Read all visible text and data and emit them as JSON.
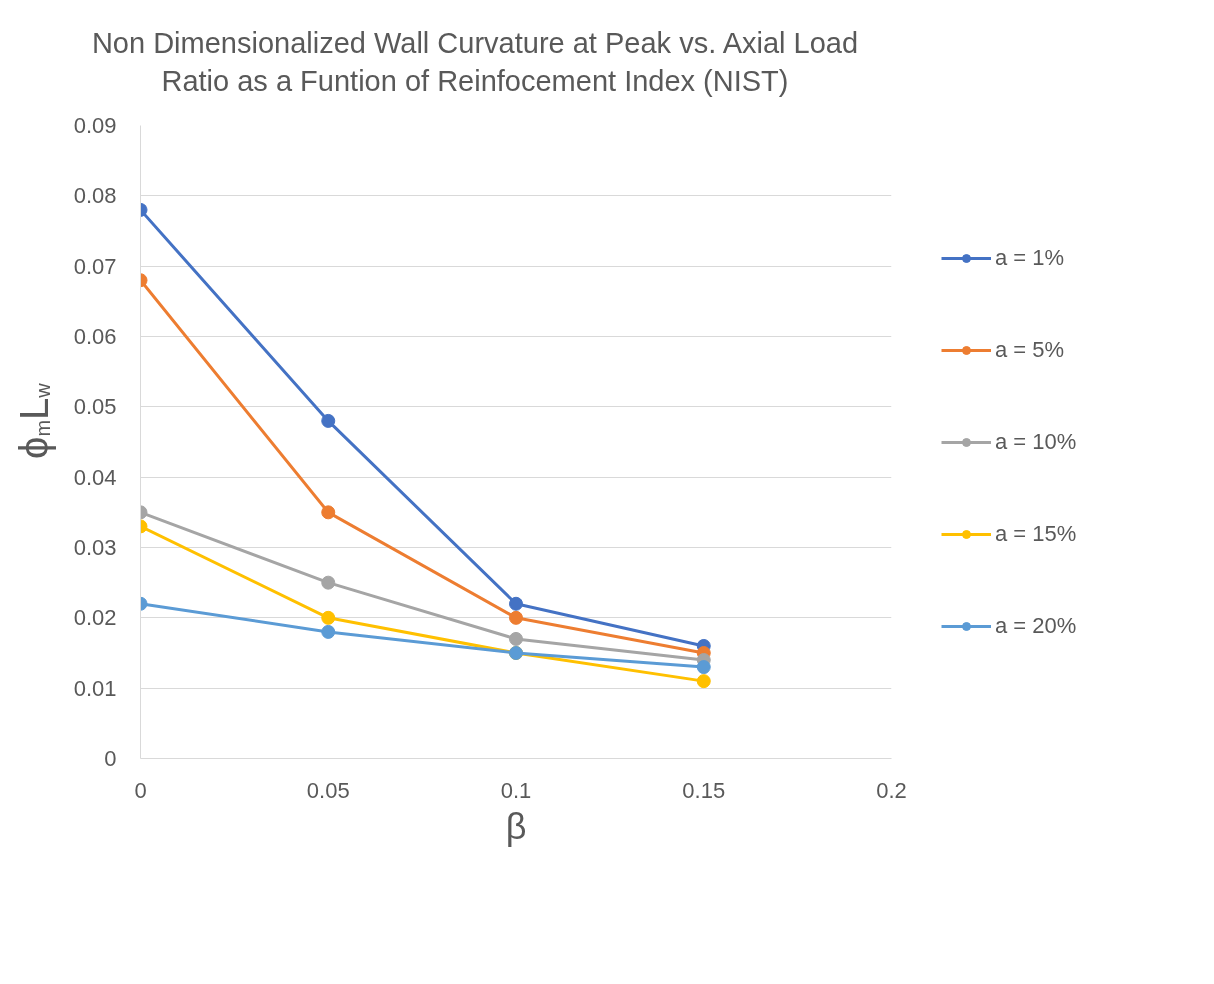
{
  "chart_data": {
    "type": "line",
    "title": "Non Dimensionalized Wall Curvature at Peak vs. Axial Load\nRatio as a Funtion of Reinfocement Index (NIST)",
    "xlabel": "β",
    "ylabel": "ϕ$_{m}$L$_{w}$",
    "x": [
      0,
      0.05,
      0.1,
      0.15
    ],
    "series": [
      {
        "name": "a = 1%",
        "color": "#4472c4",
        "values": [
          0.078,
          0.048,
          0.022,
          0.016
        ]
      },
      {
        "name": "a = 5%",
        "color": "#ed7d31",
        "values": [
          0.068,
          0.035,
          0.02,
          0.015
        ]
      },
      {
        "name": "a = 10%",
        "color": "#a5a5a5",
        "values": [
          0.035,
          0.025,
          0.017,
          0.014
        ]
      },
      {
        "name": "a = 15%",
        "color": "#ffc000",
        "values": [
          0.033,
          0.02,
          0.015,
          0.011
        ]
      },
      {
        "name": "a = 20%",
        "color": "#5b9bd5",
        "values": [
          0.022,
          0.018,
          0.015,
          0.013
        ]
      }
    ],
    "xlim": [
      0,
      0.2
    ],
    "xticks": [
      0,
      0.05,
      0.1,
      0.15,
      0.2
    ],
    "ylim": [
      0,
      0.09
    ],
    "yticks": [
      0,
      0.01,
      0.02,
      0.03,
      0.04,
      0.05,
      0.06,
      0.07,
      0.08,
      0.09
    ],
    "grid": "y",
    "legend": "right",
    "marker": "circle",
    "line_style": "solid"
  }
}
